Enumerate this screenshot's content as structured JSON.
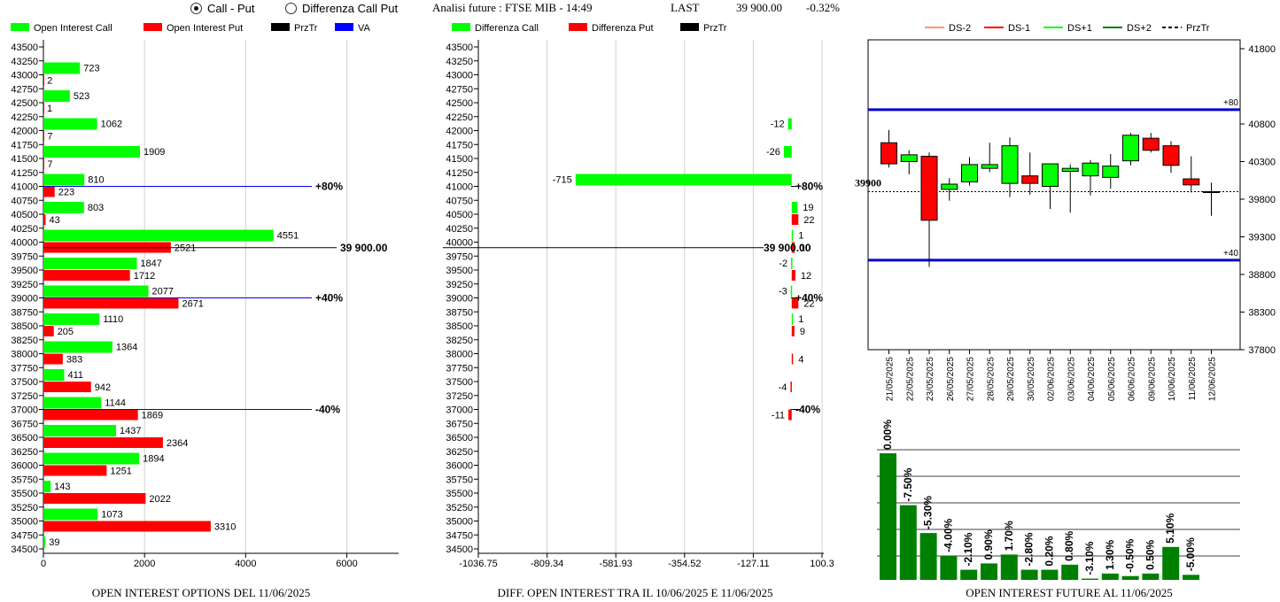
{
  "header": {
    "radio_call_put": "Call - Put",
    "radio_diff": "Differenza Call Put",
    "title": "Analisi future : FTSE MIB - 14:49",
    "last_label": "LAST",
    "last_value": "39 900.00",
    "change": "-0.32%"
  },
  "colors": {
    "call": "#00ff00",
    "put": "#ff0000",
    "prztr": "#000000",
    "va": "#0000ff",
    "dark_green": "#008000"
  },
  "strikes": [
    43500,
    43250,
    43000,
    42750,
    42500,
    42250,
    42000,
    41750,
    41500,
    41250,
    41000,
    40750,
    40500,
    40250,
    40000,
    39750,
    39500,
    39250,
    39000,
    38750,
    38500,
    38250,
    38000,
    37750,
    37500,
    37250,
    37000,
    36750,
    36500,
    36250,
    36000,
    35750,
    35500,
    35250,
    35000,
    34750,
    34500
  ],
  "strike_labels": [
    "43500",
    "43250",
    "43000",
    "42750",
    "42500",
    "42250",
    "42000",
    "41750",
    "41500",
    "41250",
    "41000",
    "40750",
    "40500",
    "40250",
    "40000",
    "39750",
    "39500",
    "39250",
    "39000",
    "38750",
    "38500",
    "38250",
    "38000",
    "37750",
    "37500",
    "37250",
    "37000",
    "36750",
    "36500",
    "36250",
    "36000",
    "35750",
    "35500",
    "35250",
    "35000",
    "34750",
    "34500"
  ],
  "chart_data": [
    {
      "type": "bar",
      "orientation": "horizontal",
      "title": "OPEN INTEREST OPTIONS DEL 11/06/2025",
      "legend": [
        "Open Interest Call",
        "Open Interest Put",
        "PrzTr",
        "VA"
      ],
      "xlim": [
        0,
        7000
      ],
      "xticks": [
        0,
        2000,
        4000,
        6000
      ],
      "xtick_labels": [
        "0",
        "2000",
        "4000",
        "6000"
      ],
      "series": [
        {
          "name": "Open Interest Call",
          "points": [
            [
              43000,
              723
            ],
            [
              42500,
              523
            ],
            [
              42000,
              1062
            ],
            [
              41500,
              1909
            ],
            [
              41000,
              810
            ],
            [
              40500,
              803
            ],
            [
              40000,
              4551
            ],
            [
              39500,
              1847
            ],
            [
              39000,
              2077
            ],
            [
              38500,
              1110
            ],
            [
              38000,
              1364
            ],
            [
              37500,
              411
            ],
            [
              37000,
              1144
            ],
            [
              36500,
              1437
            ],
            [
              36000,
              1894
            ],
            [
              35500,
              143
            ],
            [
              35000,
              1073
            ],
            [
              34500,
              39
            ]
          ]
        },
        {
          "name": "Open Interest Put",
          "points": [
            [
              43000,
              2
            ],
            [
              42500,
              1
            ],
            [
              42000,
              7
            ],
            [
              41500,
              7
            ],
            [
              41000,
              223
            ],
            [
              40500,
              43
            ],
            [
              40000,
              2521
            ],
            [
              39500,
              1712
            ],
            [
              39000,
              2671
            ],
            [
              38500,
              205
            ],
            [
              38000,
              383
            ],
            [
              37500,
              942
            ],
            [
              37000,
              1869
            ],
            [
              36500,
              2364
            ],
            [
              36000,
              1251
            ],
            [
              35500,
              2022
            ],
            [
              35000,
              3310
            ]
          ]
        }
      ],
      "lines": [
        {
          "strike": 41000,
          "label": "+80%",
          "color": "va"
        },
        {
          "strike": 39900,
          "label": "39 900.00",
          "color": "prztr"
        },
        {
          "strike": 39000,
          "label": "+40%",
          "color": "va"
        },
        {
          "strike": 37000,
          "label": "-40%",
          "color": "va"
        }
      ],
      "grid": true
    },
    {
      "type": "bar",
      "orientation": "horizontal",
      "title": "DIFF. OPEN INTEREST TRA IL 10/06/2025 E 11/06/2025",
      "legend": [
        "Differenza Call",
        "Differenza Put",
        "PrzTr"
      ],
      "xlim": [
        -1036.75,
        100.3
      ],
      "xticks": [
        -1036.75,
        -809.34,
        -581.93,
        -354.52,
        -127.11,
        100.3
      ],
      "xtick_labels": [
        "-1036.75",
        "-809.34",
        "-581.93",
        "-354.52",
        "-127.11",
        "100.3"
      ],
      "series": [
        {
          "name": "Differenza Call",
          "points": [
            [
              42000,
              -12
            ],
            [
              41500,
              -26
            ],
            [
              41000,
              -715
            ],
            [
              40500,
              19
            ],
            [
              40000,
              1
            ],
            [
              39500,
              -2
            ],
            [
              39000,
              -3
            ],
            [
              38500,
              1
            ]
          ]
        },
        {
          "name": "Differenza Put",
          "points": [
            [
              40500,
              22
            ],
            [
              40000,
              10
            ],
            [
              39500,
              12
            ],
            [
              39000,
              22
            ],
            [
              38500,
              9
            ],
            [
              38000,
              4
            ],
            [
              37500,
              -4
            ],
            [
              37000,
              -11
            ]
          ]
        }
      ],
      "lines": [
        {
          "strike": 41000,
          "label": "+80%",
          "color": "prztr"
        },
        {
          "strike": 39900,
          "label": "39 900.00",
          "color": "prztr"
        },
        {
          "strike": 39000,
          "label": "+40%",
          "color": "prztr"
        },
        {
          "strike": 37000,
          "label": "-40%",
          "color": "prztr"
        }
      ],
      "grid": true
    },
    {
      "type": "candlestick",
      "legend": [
        "DS-2",
        "DS-1",
        "DS+1",
        "DS+2",
        "PrzTr"
      ],
      "legend_colors": [
        "#ff9966",
        "#ff0000",
        "#00ff00",
        "#008000",
        "#000000"
      ],
      "ylim": [
        37800,
        41800
      ],
      "yticks": [
        41800,
        40800,
        40300,
        39800,
        39300,
        38800,
        38300,
        37800
      ],
      "ytick_labels": [
        "41800",
        "40800",
        "40300",
        "39800",
        "39300",
        "38800",
        "38300",
        "37800"
      ],
      "dates": [
        "21/05/2025",
        "22/05/2025",
        "23/05/2025",
        "26/05/2025",
        "27/05/2025",
        "28/05/2025",
        "29/05/2025",
        "30/05/2025",
        "02/06/2025",
        "03/06/2025",
        "04/06/2025",
        "05/06/2025",
        "06/06/2025",
        "09/06/2025",
        "10/06/2025",
        "11/06/2025",
        "12/06/2025"
      ],
      "ohlc": [
        [
          40550,
          40720,
          40220,
          40270
        ],
        [
          40300,
          40450,
          40130,
          40390
        ],
        [
          40370,
          40420,
          38900,
          39520
        ],
        [
          39930,
          40080,
          39780,
          40000
        ],
        [
          40030,
          40360,
          39980,
          40260
        ],
        [
          40210,
          40550,
          40160,
          40260
        ],
        [
          40010,
          40620,
          39830,
          40510
        ],
        [
          40110,
          40420,
          39860,
          40010
        ],
        [
          39970,
          40270,
          39670,
          40270
        ],
        [
          40170,
          40260,
          39620,
          40210
        ],
        [
          40110,
          40320,
          39850,
          40280
        ],
        [
          40090,
          40400,
          39940,
          40240
        ],
        [
          40310,
          40680,
          40250,
          40650
        ],
        [
          40610,
          40680,
          40420,
          40450
        ],
        [
          40510,
          40570,
          40150,
          40250
        ],
        [
          40070,
          40370,
          39890,
          39990
        ],
        [
          39900,
          40020,
          39580,
          39900
        ]
      ],
      "hlines": [
        {
          "value": 40990,
          "label": "+80"
        },
        {
          "value": 38990,
          "label": "+40"
        }
      ],
      "last_label": "39900",
      "last_value": 39900
    },
    {
      "type": "bar",
      "title": "OPEN INTEREST FUTURE AL 11/06/2025",
      "values": [
        100,
        59,
        37,
        19,
        8,
        13,
        20,
        8,
        8,
        12,
        1,
        5,
        3,
        5,
        26,
        4
      ],
      "labels": [
        "0.00%",
        "-7.50%",
        "-5.30%",
        "-4.00%",
        "-2.10%",
        "0.90%",
        "1.70%",
        "-2.80%",
        "0.20%",
        "0.80%",
        "-3.10%",
        "1.30%",
        "-0.50%",
        "0.50%",
        "5.10%",
        "-5.00%"
      ],
      "color": "#008000"
    }
  ]
}
